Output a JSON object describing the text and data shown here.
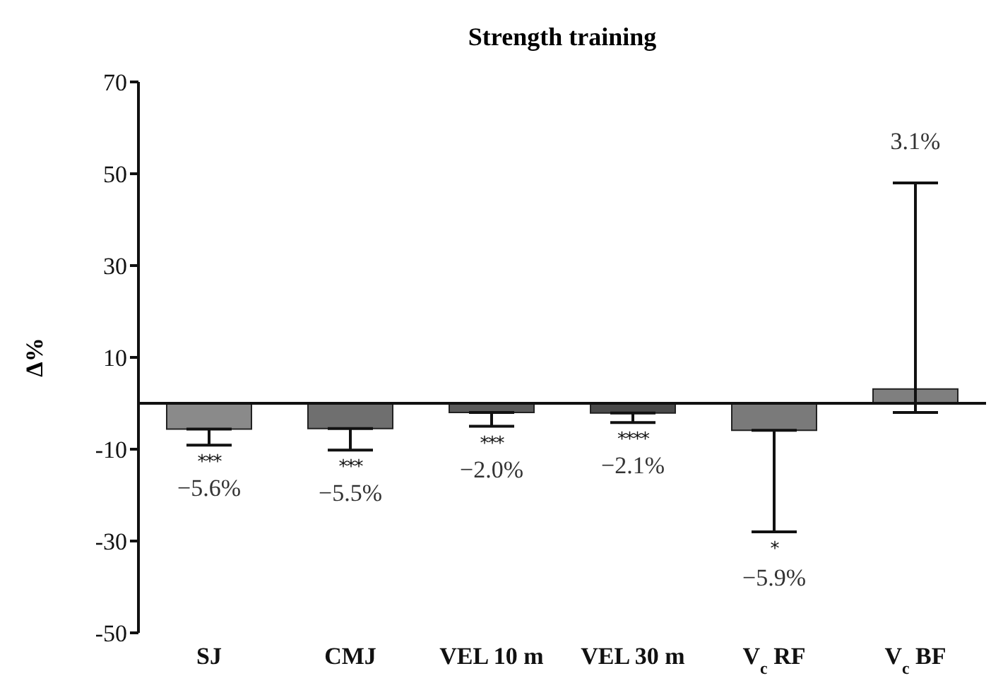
{
  "chart_data": {
    "type": "bar",
    "title": "Strength training",
    "ylabel": "Δ%",
    "categories": [
      "SJ",
      "CMJ",
      "VEL 10 m",
      "VEL 30 m",
      "V$_{c}$ RF",
      "V$_{c}$ BF"
    ],
    "values": [
      -5.6,
      -5.5,
      -2.0,
      -2.1,
      -5.9,
      3.1
    ],
    "colors": [
      "#8a8a8a",
      "#6f6f6f",
      "#5a5a5a",
      "#4a4a4a",
      "#7a7a7a",
      "#7f7f7f"
    ],
    "errors": [
      [
        -9.1,
        -5.6
      ],
      [
        -10.2,
        -5.5
      ],
      [
        -5,
        -2.0
      ],
      [
        -4.2,
        -2.1
      ],
      [
        -28,
        -5.9
      ],
      [
        -2,
        48
      ]
    ],
    "value_labels": [
      "−5.6%",
      "−5.5%",
      "−2.0%",
      "−2.1%",
      null,
      null
    ],
    "annotations": [
      {
        "text": "***",
        "x": "SJ",
        "y": -9.1
      },
      {
        "text": "***",
        "x": "CMJ",
        "y": -10.2
      },
      {
        "text": "***",
        "x": "VEL 10 m",
        "y": -5
      },
      {
        "text": "****",
        "x": "VEL 30 m",
        "y": -4.2
      },
      {
        "text": "*",
        "x": "V$_{c}$ RF",
        "y": -28
      },
      {
        "text": "−5.9%",
        "x": "V$_{c}$ RF",
        "y": -28
      },
      {
        "text": "3.1%",
        "x": "V$_{c}$ BF",
        "y": 48
      }
    ],
    "ylim": [
      -50,
      70
    ],
    "yticks": [
      -50,
      -30,
      -10,
      10,
      30,
      50,
      70
    ],
    "grid": false
  }
}
